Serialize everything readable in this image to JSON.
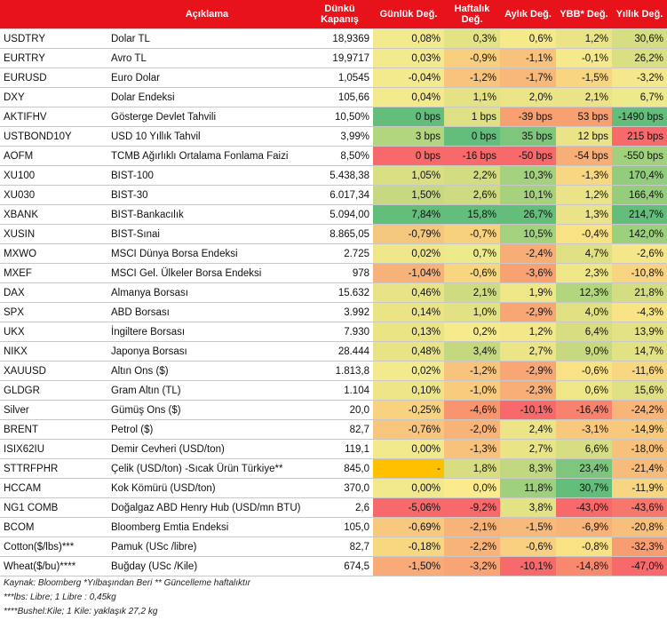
{
  "headers": {
    "col1": "",
    "col2": "Açıklama",
    "col3": "Dünkü Kapanış",
    "col4": "Günlük Değ.",
    "col5": "Haftalık Değ.",
    "col6": "Aylık Değ.",
    "col7": "YBB* Değ.",
    "col8": "Yıllık Değ."
  },
  "rows": [
    {
      "symbol": "USDTRY",
      "desc": "Dolar TL",
      "close": "18,9369",
      "daily": "0,08%",
      "weekly": "0,3%",
      "monthly": "0,6%",
      "ytd": "1,2%",
      "yearly": "30,6%"
    },
    {
      "symbol": "EURTRY",
      "desc": "Avro TL",
      "close": "19,9717",
      "daily": "0,03%",
      "weekly": "-0,9%",
      "monthly": "-1,1%",
      "ytd": "-0,1%",
      "yearly": "26,2%"
    },
    {
      "symbol": "EURUSD",
      "desc": "Euro Dolar",
      "close": "1,0545",
      "daily": "-0,04%",
      "weekly": "-1,2%",
      "monthly": "-1,7%",
      "ytd": "-1,5%",
      "yearly": "-3,2%"
    },
    {
      "symbol": "DXY",
      "desc": "Dolar Endeksi",
      "close": "105,66",
      "daily": "0,04%",
      "weekly": "1,1%",
      "monthly": "2,0%",
      "ytd": "2,1%",
      "yearly": "6,7%"
    },
    {
      "symbol": "AKTIFHV",
      "desc": "Gösterge Devlet Tahvili",
      "close": "10,50%",
      "daily": "0 bps",
      "weekly": "1 bps",
      "monthly": "-39 bps",
      "ytd": "53 bps",
      "yearly": "-1490 bps"
    },
    {
      "symbol": "USTBOND10Y",
      "desc": "USD 10 Yıllık Tahvil",
      "close": "3,99%",
      "daily": "3 bps",
      "weekly": "0 bps",
      "monthly": "35 bps",
      "ytd": "12 bps",
      "yearly": "215 bps"
    },
    {
      "symbol": "AOFM",
      "desc": "TCMB Ağırlıklı Ortalama Fonlama Faizi",
      "close": "8,50%",
      "daily": "0 bps",
      "weekly": "-16 bps",
      "monthly": "-50 bps",
      "ytd": "-54 bps",
      "yearly": "-550 bps"
    },
    {
      "symbol": "XU100",
      "desc": "BIST-100",
      "close": "5.438,38",
      "daily": "1,05%",
      "weekly": "2,2%",
      "monthly": "10,3%",
      "ytd": "-1,3%",
      "yearly": "170,4%"
    },
    {
      "symbol": "XU030",
      "desc": "BIST-30",
      "close": "6.017,34",
      "daily": "1,50%",
      "weekly": "2,6%",
      "monthly": "10,1%",
      "ytd": "1,2%",
      "yearly": "166,4%"
    },
    {
      "symbol": "XBANK",
      "desc": "BIST-Bankacılık",
      "close": "5.094,00",
      "daily": "7,84%",
      "weekly": "15,8%",
      "monthly": "26,7%",
      "ytd": "1,3%",
      "yearly": "214,7%"
    },
    {
      "symbol": "XUSIN",
      "desc": "BIST-Sınai",
      "close": "8.865,05",
      "daily": "-0,79%",
      "weekly": "-0,7%",
      "monthly": "10,5%",
      "ytd": "-0,4%",
      "yearly": "142,0%"
    },
    {
      "symbol": "MXWO",
      "desc": "MSCI Dünya Borsa Endeksi",
      "close": "2.725",
      "daily": "0,02%",
      "weekly": "0,7%",
      "monthly": "-2,4%",
      "ytd": "4,7%",
      "yearly": "-2,6%"
    },
    {
      "symbol": "MXEF",
      "desc": "MSCI Gel. Ülkeler Borsa Endeksi",
      "close": "978",
      "daily": "-1,04%",
      "weekly": "-0,6%",
      "monthly": "-3,6%",
      "ytd": "2,3%",
      "yearly": "-10,8%"
    },
    {
      "symbol": "DAX",
      "desc": "Almanya Borsası",
      "close": "15.632",
      "daily": "0,46%",
      "weekly": "2,1%",
      "monthly": "1,9%",
      "ytd": "12,3%",
      "yearly": "21,8%"
    },
    {
      "symbol": "SPX",
      "desc": "ABD Borsası",
      "close": "3.992",
      "daily": "0,14%",
      "weekly": "1,0%",
      "monthly": "-2,9%",
      "ytd": "4,0%",
      "yearly": "-4,3%"
    },
    {
      "symbol": "UKX",
      "desc": "İngiltere Borsası",
      "close": "7.930",
      "daily": "0,13%",
      "weekly": "0,2%",
      "monthly": "1,2%",
      "ytd": "6,4%",
      "yearly": "13,9%"
    },
    {
      "symbol": "NIKX",
      "desc": "Japonya Borsası",
      "close": "28.444",
      "daily": "0,48%",
      "weekly": "3,4%",
      "monthly": "2,7%",
      "ytd": "9,0%",
      "yearly": "14,7%"
    },
    {
      "symbol": "XAUUSD",
      "desc": "Altın Ons ($)",
      "close": "1.813,8",
      "daily": "0,02%",
      "weekly": "-1,2%",
      "monthly": "-2,9%",
      "ytd": "-0,6%",
      "yearly": "-11,6%"
    },
    {
      "symbol": "GLDGR",
      "desc": "Gram Altın (TL)",
      "close": "1.104",
      "daily": "0,10%",
      "weekly": "-1,0%",
      "monthly": "-2,3%",
      "ytd": "0,6%",
      "yearly": "15,6%"
    },
    {
      "symbol": "Silver",
      "desc": "Gümüş Ons ($)",
      "close": "20,0",
      "daily": "-0,25%",
      "weekly": "-4,6%",
      "monthly": "-10,1%",
      "ytd": "-16,4%",
      "yearly": "-24,2%"
    },
    {
      "symbol": "BRENT",
      "desc": "Petrol ($)",
      "close": "82,7",
      "daily": "-0,76%",
      "weekly": "-2,0%",
      "monthly": "2,4%",
      "ytd": "-3,1%",
      "yearly": "-14,9%"
    },
    {
      "symbol": "ISIX62IU",
      "desc": "Demir Cevheri (USD/ton)",
      "close": "119,1",
      "daily": "0,00%",
      "weekly": "-1,3%",
      "monthly": "2,7%",
      "ytd": "6,6%",
      "yearly": "-18,0%"
    },
    {
      "symbol": "STTRFPHR",
      "desc": "Çelik (USD/ton) -Sıcak Ürün Türkiye**",
      "close": "845,0",
      "daily": "-",
      "weekly": "1,8%",
      "monthly": "8,3%",
      "ytd": "23,4%",
      "yearly": "-21,4%"
    },
    {
      "symbol": "HCCAM",
      "desc": "Kok Kömürü (USD/ton)",
      "close": "370,0",
      "daily": "0,00%",
      "weekly": "0,0%",
      "monthly": "11,8%",
      "ytd": "30,7%",
      "yearly": "-11,9%"
    },
    {
      "symbol": "NG1 COMB",
      "desc": "Doğalgaz ABD Henry Hub (USD/mn BTU)",
      "close": "2,6",
      "daily": "-5,06%",
      "weekly": "-9,2%",
      "monthly": "3,8%",
      "ytd": "-43,0%",
      "yearly": "-43,6%"
    },
    {
      "symbol": "BCOM",
      "desc": "Bloomberg Emtia Endeksi",
      "close": "105,0",
      "daily": "-0,69%",
      "weekly": "-2,1%",
      "monthly": "-1,5%",
      "ytd": "-6,9%",
      "yearly": "-20,8%"
    },
    {
      "symbol": "Cotton($/lbs)***",
      "desc": "Pamuk (USc /libre)",
      "close": "82,7",
      "daily": "-0,18%",
      "weekly": "-2,2%",
      "monthly": "-0,6%",
      "ytd": "-0,8%",
      "yearly": "-32,3%"
    },
    {
      "symbol": "Wheat($/bu)****",
      "desc": "Buğday (USc /Kile)",
      "close": "674,5",
      "daily": "-1,50%",
      "weekly": "-3,2%",
      "monthly": "-10,1%",
      "ytd": "-14,8%",
      "yearly": "-47,0%"
    }
  ],
  "cell_colors": {
    "daily": [
      "#f3e98d",
      "#f3e98d",
      "#f3e98d",
      "#f3e98d",
      "#63be7b",
      "#b2d67e",
      "#f8696b",
      "#d9df82",
      "#c6d980",
      "#63be7b",
      "#f4c77e",
      "#efe589",
      "#f7b27a",
      "#e8e386",
      "#eae485",
      "#eae485",
      "#e8e386",
      "#f3e98d",
      "#ede587",
      "#f8d27f",
      "#f8c57c",
      "#f2e88c",
      "#ffc000",
      "#f2e88c",
      "#f8696b",
      "#f7c87d",
      "#f8d781",
      "#f8aa77"
    ],
    "weekly": [
      "#e3e284",
      "#f8cf7e",
      "#f8c37c",
      "#e4e284",
      "#dfe083",
      "#63be7b",
      "#f8696b",
      "#d3dc81",
      "#cfdb81",
      "#63be7b",
      "#f8d17f",
      "#ecea8a",
      "#f8d67f",
      "#cfdb81",
      "#e2e184",
      "#f5eb8c",
      "#c4d87f",
      "#f8c37c",
      "#f8cb7d",
      "#f8956f",
      "#f8b478",
      "#f8c27c",
      "#d8dd82",
      "#fbeb8c",
      "#f8696b",
      "#f8b478",
      "#f8b378",
      "#f8a474"
    ],
    "monthly": [
      "#f5e98a",
      "#f8c27c",
      "#f8b879",
      "#ebe587",
      "#f8a072",
      "#7fc67d",
      "#f8696b",
      "#a4d17e",
      "#a6d27e",
      "#63be7b",
      "#a3d17e",
      "#f8ad77",
      "#f8a173",
      "#eee687",
      "#f8a674",
      "#f2e88a",
      "#ebe587",
      "#f8a674",
      "#f8af77",
      "#f8696b",
      "#ebe587",
      "#e9e486",
      "#c1d880",
      "#9fd07e",
      "#e3e284",
      "#f8ba7a",
      "#f8d07f",
      "#f8696b"
    ],
    "ytd": [
      "#eae387",
      "#f6e98b",
      "#f8d681",
      "#eae387",
      "#f8a072",
      "#eae387",
      "#f8af77",
      "#f8d782",
      "#eae387",
      "#eae387",
      "#f8e284",
      "#dfe083",
      "#eee687",
      "#b2d67e",
      "#e0e083",
      "#d8dd82",
      "#c6d980",
      "#f8e284",
      "#eee687",
      "#f8826d",
      "#f8c87d",
      "#d6dd82",
      "#7ec67d",
      "#63be7b",
      "#f8696b",
      "#f8b378",
      "#f8e284",
      "#f8896f"
    ],
    "yearly": [
      "#d6dd82",
      "#dadf83",
      "#f5e78b",
      "#ecea8a",
      "#63be7b",
      "#f8696b",
      "#a2d17e",
      "#92cc7d",
      "#95cd7d",
      "#63be7b",
      "#9ccf7e",
      "#f6e68a",
      "#f8d381",
      "#d4dd81",
      "#f8e385",
      "#e3e284",
      "#e2e184",
      "#f8d781",
      "#dfe083",
      "#f8b579",
      "#f8c87d",
      "#f8c17b",
      "#f8bc7a",
      "#f8d681",
      "#f8776d",
      "#f8bf7b",
      "#f89c72",
      "#f8696b"
    ]
  },
  "notes": [
    "Kaynak: Bloomberg *Yılbaşından Beri  ** Güncelleme haftalıktır",
    "***lbs: Libre; 1 Libre : 0,45kg",
    "****Bushel:Kile; 1 Kile: yaklaşık 27,2 kg"
  ]
}
